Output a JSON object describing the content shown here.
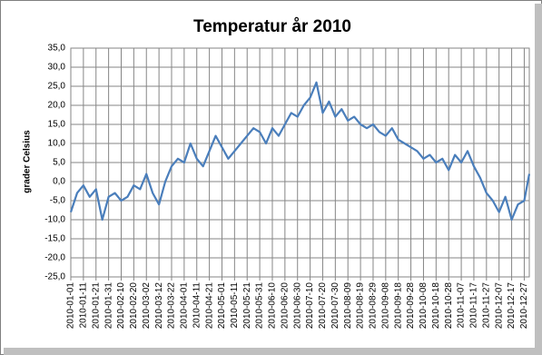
{
  "chart_data": {
    "type": "line",
    "title": "Temperatur år 2010",
    "y_label": "grader Celsius",
    "color": "#4a7ebb",
    "grid": true,
    "x": [
      "2010-01-01",
      "2010-01-06",
      "2010-01-11",
      "2010-01-16",
      "2010-01-21",
      "2010-01-26",
      "2010-01-31",
      "2010-02-05",
      "2010-02-10",
      "2010-02-15",
      "2010-02-20",
      "2010-02-25",
      "2010-03-02",
      "2010-03-07",
      "2010-03-12",
      "2010-03-17",
      "2010-03-22",
      "2010-03-27",
      "2010-04-01",
      "2010-04-06",
      "2010-04-11",
      "2010-04-16",
      "2010-04-21",
      "2010-04-26",
      "2010-05-01",
      "2010-05-06",
      "2010-05-11",
      "2010-05-16",
      "2010-05-21",
      "2010-05-26",
      "2010-05-31",
      "2010-06-05",
      "2010-06-10",
      "2010-06-15",
      "2010-06-20",
      "2010-06-25",
      "2010-06-30",
      "2010-07-05",
      "2010-07-10",
      "2010-07-15",
      "2010-07-20",
      "2010-07-25",
      "2010-07-30",
      "2010-08-04",
      "2010-08-09",
      "2010-08-14",
      "2010-08-19",
      "2010-08-24",
      "2010-08-29",
      "2010-09-03",
      "2010-09-08",
      "2010-09-13",
      "2010-09-18",
      "2010-09-23",
      "2010-09-28",
      "2010-10-03",
      "2010-10-08",
      "2010-10-13",
      "2010-10-18",
      "2010-10-23",
      "2010-10-28",
      "2010-11-02",
      "2010-11-07",
      "2010-11-12",
      "2010-11-17",
      "2010-11-22",
      "2010-11-27",
      "2010-12-02",
      "2010-12-07",
      "2010-12-12",
      "2010-12-17",
      "2010-12-22",
      "2010-12-27",
      "2010-12-31"
    ],
    "values": [
      -8,
      -3,
      -1,
      -4,
      -2,
      -10,
      -4,
      -3,
      -5,
      -4,
      -1,
      -2,
      2,
      -3,
      -6,
      0,
      4,
      6,
      5,
      10,
      6,
      4,
      8,
      12,
      9,
      6,
      8,
      10,
      12,
      14,
      13,
      10,
      14,
      12,
      15,
      18,
      17,
      20,
      22,
      26,
      18,
      21,
      17,
      19,
      16,
      17,
      15,
      14,
      15,
      13,
      12,
      14,
      11,
      10,
      9,
      8,
      6,
      7,
      5,
      6,
      3,
      7,
      5,
      8,
      4,
      1,
      -3,
      -5,
      -8,
      -4,
      -10,
      -6,
      -5,
      2
    ],
    "xlim": [
      "2010-01-01",
      "2010-12-31"
    ],
    "xticks": [
      "2010-01-01",
      "2010-01-11",
      "2010-01-21",
      "2010-01-31",
      "2010-02-10",
      "2010-02-20",
      "2010-03-02",
      "2010-03-12",
      "2010-03-22",
      "2010-04-01",
      "2010-04-11",
      "2010-04-21",
      "2010-05-01",
      "2010-05-11",
      "2010-05-21",
      "2010-05-31",
      "2010-06-10",
      "2010-06-20",
      "2010-06-30",
      "2010-07-10",
      "2010-07-20",
      "2010-07-30",
      "2010-08-09",
      "2010-08-19",
      "2010-08-29",
      "2010-09-08",
      "2010-09-18",
      "2010-09-28",
      "2010-10-08",
      "2010-10-18",
      "2010-10-28",
      "2010-11-07",
      "2010-11-17",
      "2010-11-27",
      "2010-12-07",
      "2010-12-17",
      "2010-12-27"
    ],
    "ylim": [
      -25,
      35
    ],
    "yticks": [
      {
        "value": -25,
        "label": "-25,0"
      },
      {
        "value": -20,
        "label": "-20,0"
      },
      {
        "value": -15,
        "label": "-15,0"
      },
      {
        "value": -10,
        "label": "-10,0"
      },
      {
        "value": -5,
        "label": "-5,0"
      },
      {
        "value": 0,
        "label": "0,0"
      },
      {
        "value": 5,
        "label": "5,0"
      },
      {
        "value": 10,
        "label": "10,0"
      },
      {
        "value": 15,
        "label": "15,0"
      },
      {
        "value": 20,
        "label": "20,0"
      },
      {
        "value": 25,
        "label": "25,0"
      },
      {
        "value": 30,
        "label": "30,0"
      },
      {
        "value": 35,
        "label": "35,0"
      }
    ]
  }
}
